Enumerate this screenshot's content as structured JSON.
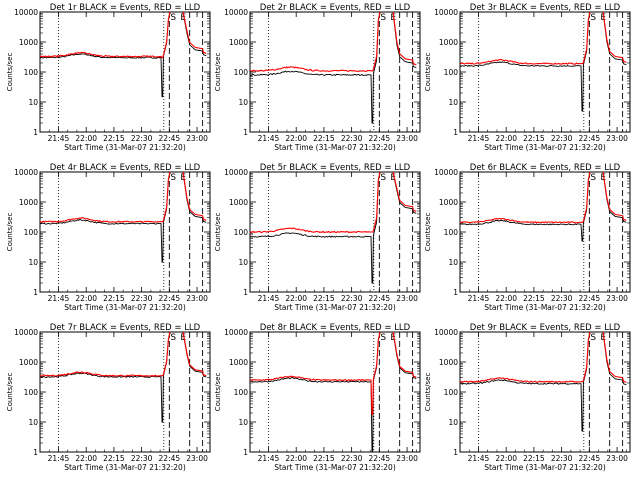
{
  "chart_data": [
    {
      "type": "line",
      "title": "Det 1r BLACK = Events, RED = LLD",
      "ylabel": "Counts/sec",
      "xlabel": "Start Time (31-Mar-07 21:32:20)",
      "xticks": [
        "21:45",
        "22:00",
        "22:15",
        "22:30",
        "22:45",
        "23:00"
      ],
      "yticks": [
        "1",
        "10",
        "100",
        "1000",
        "10000"
      ],
      "ylim": [
        1,
        10000
      ],
      "markers": [
        "S",
        "E"
      ],
      "series": [
        {
          "name": "Events",
          "color": "#000000",
          "level": 300,
          "dip": 15,
          "peak": 9000,
          "after": 500
        },
        {
          "name": "LLD",
          "color": "#ff0000",
          "level": 330,
          "dip": 300,
          "peak": 9500,
          "after": 600
        }
      ]
    },
    {
      "type": "line",
      "title": "Det 2r BLACK = Events, RED = LLD",
      "ylabel": "Counts/sec",
      "xlabel": "Start Time (31-Mar-07 21:32:20)",
      "xticks": [
        "21:45",
        "22:00",
        "22:15",
        "22:30",
        "22:45",
        "23:00"
      ],
      "yticks": [
        "1",
        "10",
        "100",
        "1000",
        "10000"
      ],
      "ylim": [
        1,
        10000
      ],
      "markers": [
        "S",
        "E"
      ],
      "series": [
        {
          "name": "Events",
          "color": "#000000",
          "level": 80,
          "dip": 2,
          "peak": 9000,
          "after": 200
        },
        {
          "name": "LLD",
          "color": "#ff0000",
          "level": 110,
          "dip": 110,
          "peak": 9500,
          "after": 250
        }
      ]
    },
    {
      "type": "line",
      "title": "Det 3r BLACK = Events, RED = LLD",
      "ylabel": "Counts/sec",
      "xlabel": "Start Time (31-Mar-07 21:32:20)",
      "xticks": [
        "21:45",
        "22:00",
        "22:15",
        "22:30",
        "22:45",
        "23:00"
      ],
      "yticks": [
        "1",
        "10",
        "100",
        "1000",
        "10000"
      ],
      "ylim": [
        1,
        10000
      ],
      "markers": [
        "S",
        "E"
      ],
      "series": [
        {
          "name": "Events",
          "color": "#000000",
          "level": 160,
          "dip": 5,
          "peak": 9000,
          "after": 250
        },
        {
          "name": "LLD",
          "color": "#ff0000",
          "level": 190,
          "dip": 190,
          "peak": 9500,
          "after": 300
        }
      ]
    },
    {
      "type": "line",
      "title": "Det 4r BLACK = Events, RED = LLD",
      "ylabel": "Counts/sec",
      "xlabel": "Start Time (31-Mar-07 21:32:20)",
      "xticks": [
        "21:45",
        "22:00",
        "22:15",
        "22:30",
        "22:45",
        "23:00"
      ],
      "yticks": [
        "1",
        "10",
        "100",
        "1000",
        "10000"
      ],
      "ylim": [
        1,
        10000
      ],
      "markers": [
        "S",
        "E"
      ],
      "series": [
        {
          "name": "Events",
          "color": "#000000",
          "level": 190,
          "dip": 10,
          "peak": 9000,
          "after": 300
        },
        {
          "name": "LLD",
          "color": "#ff0000",
          "level": 220,
          "dip": 220,
          "peak": 9500,
          "after": 350
        }
      ]
    },
    {
      "type": "line",
      "title": "Det 5r BLACK = Events, RED = LLD",
      "ylabel": "Counts/sec",
      "xlabel": "Start Time (31-Mar-07 21:32:20)",
      "xticks": [
        "21:45",
        "22:00",
        "22:15",
        "22:30",
        "22:45",
        "23:00"
      ],
      "yticks": [
        "1",
        "10",
        "100",
        "1000",
        "10000"
      ],
      "ylim": [
        1,
        10000
      ],
      "markers": [
        "S",
        "E"
      ],
      "series": [
        {
          "name": "Events",
          "color": "#000000",
          "level": 70,
          "dip": 2,
          "peak": 9000,
          "after": 600
        },
        {
          "name": "LLD",
          "color": "#ff0000",
          "level": 100,
          "dip": 100,
          "peak": 9500,
          "after": 700
        }
      ]
    },
    {
      "type": "line",
      "title": "Det 6r BLACK = Events, RED = LLD",
      "ylabel": "Counts/sec",
      "xlabel": "Start Time (31-Mar-07 21:32:20)",
      "xticks": [
        "21:45",
        "22:00",
        "22:15",
        "22:30",
        "22:45",
        "23:00"
      ],
      "yticks": [
        "1",
        "10",
        "100",
        "1000",
        "10000"
      ],
      "ylim": [
        1,
        10000
      ],
      "markers": [
        "S",
        "E"
      ],
      "series": [
        {
          "name": "Events",
          "color": "#000000",
          "level": 180,
          "dip": 50,
          "peak": 9000,
          "after": 300
        },
        {
          "name": "LLD",
          "color": "#ff0000",
          "level": 210,
          "dip": 210,
          "peak": 9500,
          "after": 350
        }
      ]
    },
    {
      "type": "line",
      "title": "Det 7r BLACK = Events, RED = LLD",
      "ylabel": "Counts/sec",
      "xlabel": "Start Time (31-Mar-07 21:32:20)",
      "xticks": [
        "21:45",
        "22:00",
        "22:15",
        "22:30",
        "22:45",
        "23:00"
      ],
      "yticks": [
        "1",
        "10",
        "100",
        "1000",
        "10000"
      ],
      "ylim": [
        1,
        10000
      ],
      "markers": [
        "S",
        "E"
      ],
      "series": [
        {
          "name": "Events",
          "color": "#000000",
          "level": 320,
          "dip": 10,
          "peak": 9000,
          "after": 450
        },
        {
          "name": "LLD",
          "color": "#ff0000",
          "level": 350,
          "dip": 350,
          "peak": 9500,
          "after": 500
        }
      ]
    },
    {
      "type": "line",
      "title": "Det 8r BLACK = Events, RED = LLD",
      "ylabel": "Counts/sec",
      "xlabel": "Start Time (31-Mar-07 21:32:20)",
      "xticks": [
        "21:45",
        "22:00",
        "22:15",
        "22:30",
        "22:45",
        "23:00"
      ],
      "yticks": [
        "1",
        "10",
        "100",
        "1000",
        "10000"
      ],
      "ylim": [
        1,
        10000
      ],
      "markers": [
        "S",
        "E"
      ],
      "series": [
        {
          "name": "Events",
          "color": "#000000",
          "level": 220,
          "dip": 1,
          "peak": 9000,
          "after": 400
        },
        {
          "name": "LLD",
          "color": "#ff0000",
          "level": 250,
          "dip": 18,
          "peak": 9500,
          "after": 450
        }
      ]
    },
    {
      "type": "line",
      "title": "Det 9r BLACK = Events, RED = LLD",
      "ylabel": "Counts/sec",
      "xlabel": "Start Time (31-Mar-07 21:32:20)",
      "xticks": [
        "21:45",
        "22:00",
        "22:15",
        "22:30",
        "22:45",
        "23:00"
      ],
      "yticks": [
        "1",
        "10",
        "100",
        "1000",
        "10000"
      ],
      "ylim": [
        1,
        10000
      ],
      "markers": [
        "S",
        "E"
      ],
      "series": [
        {
          "name": "Events",
          "color": "#000000",
          "level": 190,
          "dip": 5,
          "peak": 9000,
          "after": 250
        },
        {
          "name": "LLD",
          "color": "#ff0000",
          "level": 220,
          "dip": 220,
          "peak": 9500,
          "after": 300
        }
      ]
    }
  ]
}
